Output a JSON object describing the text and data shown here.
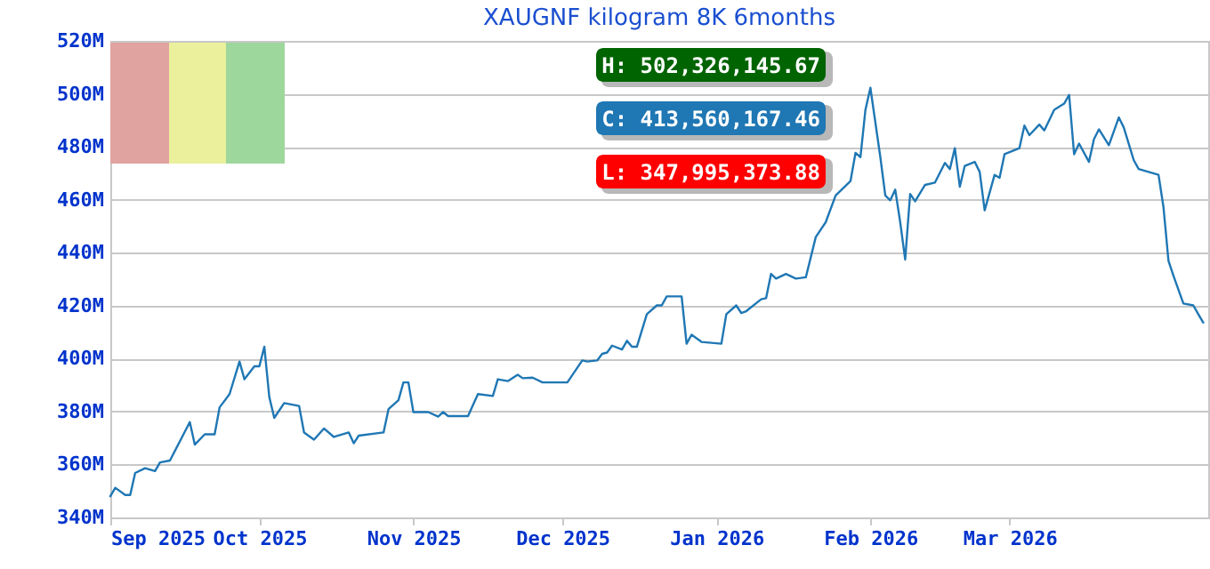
{
  "chart_data": {
    "type": "line",
    "title": "XAUGNF kilogram 8K 6months",
    "x": [
      "2025-09-01",
      "2025-09-02",
      "2025-09-04",
      "2025-09-05",
      "2025-09-06",
      "2025-09-08",
      "2025-09-10",
      "2025-09-11",
      "2025-09-13",
      "2025-09-17",
      "2025-09-18",
      "2025-09-20",
      "2025-09-22",
      "2025-09-23",
      "2025-09-25",
      "2025-09-27",
      "2025-09-28",
      "2025-09-30",
      "2025-10-01",
      "2025-10-02",
      "2025-10-03",
      "2025-10-04",
      "2025-10-06",
      "2025-10-09",
      "2025-10-10",
      "2025-10-12",
      "2025-10-14",
      "2025-10-16",
      "2025-10-19",
      "2025-10-20",
      "2025-10-21",
      "2025-10-26",
      "2025-10-27",
      "2025-10-29",
      "2025-10-30",
      "2025-10-31",
      "2025-11-01",
      "2025-11-04",
      "2025-11-06",
      "2025-11-07",
      "2025-11-08",
      "2025-11-11",
      "2025-11-12",
      "2025-11-14",
      "2025-11-17",
      "2025-11-18",
      "2025-11-20",
      "2025-11-22",
      "2025-11-23",
      "2025-11-25",
      "2025-11-27",
      "2025-12-02",
      "2025-12-05",
      "2025-12-06",
      "2025-12-08",
      "2025-12-09",
      "2025-12-10",
      "2025-12-11",
      "2025-12-13",
      "2025-12-14",
      "2025-12-15",
      "2025-12-16",
      "2025-12-18",
      "2025-12-20",
      "2025-12-21",
      "2025-12-22",
      "2025-12-25",
      "2025-12-26",
      "2025-12-27",
      "2025-12-29",
      "2026-01-02",
      "2026-01-03",
      "2026-01-05",
      "2026-01-06",
      "2026-01-07",
      "2026-01-10",
      "2026-01-11",
      "2026-01-12",
      "2026-01-13",
      "2026-01-15",
      "2026-01-17",
      "2026-01-19",
      "2026-01-21",
      "2026-01-23",
      "2026-01-25",
      "2026-01-28",
      "2026-01-29",
      "2026-01-30",
      "2026-01-31",
      "2026-02-01",
      "2026-02-03",
      "2026-02-04",
      "2026-02-05",
      "2026-02-06",
      "2026-02-07",
      "2026-02-08",
      "2026-02-09",
      "2026-02-10",
      "2026-02-12",
      "2026-02-14",
      "2026-02-16",
      "2026-02-17",
      "2026-02-18",
      "2026-02-19",
      "2026-02-20",
      "2026-02-22",
      "2026-02-23",
      "2026-02-24",
      "2026-02-26",
      "2026-02-27",
      "2026-02-28",
      "2026-03-03",
      "2026-03-04",
      "2026-03-05",
      "2026-03-07",
      "2026-03-08",
      "2026-03-10",
      "2026-03-12",
      "2026-03-13",
      "2026-03-14",
      "2026-03-15",
      "2026-03-17",
      "2026-03-18",
      "2026-03-19",
      "2026-03-21",
      "2026-03-23",
      "2026-03-24",
      "2026-03-26",
      "2026-03-27",
      "2026-03-29",
      "2026-03-31",
      "2026-04-01",
      "2026-04-02",
      "2026-04-03",
      "2026-04-05",
      "2026-04-07",
      "2026-04-08",
      "2026-04-09"
    ],
    "series": [
      {
        "color": "#1f77b4",
        "values": [
          348,
          351.2,
          348.5,
          348.5,
          356.8,
          358.6,
          357.5,
          360.8,
          361.5,
          376,
          367.5,
          371.4,
          371.4,
          381.6,
          386.6,
          398.9,
          392.2,
          397.1,
          397.1,
          404.5,
          385.5,
          377.6,
          383.2,
          382.1,
          372.1,
          369.4,
          373.6,
          370.4,
          372.1,
          368,
          370.9,
          372.1,
          380.9,
          384.3,
          391,
          391,
          379.8,
          379.8,
          378.1,
          379.8,
          378.3,
          378.3,
          378.3,
          386.6,
          385.9,
          392.2,
          391.5,
          393.9,
          392.6,
          392.8,
          391,
          391,
          399.3,
          398.9,
          399.3,
          401.8,
          402.3,
          404.9,
          403.4,
          406.7,
          404.5,
          404.5,
          416.8,
          420.1,
          420.1,
          423.5,
          423.5,
          405.6,
          409,
          406.3,
          405.6,
          416.8,
          420.1,
          417.2,
          417.9,
          422.4,
          422.8,
          432,
          430.2,
          432,
          430.2,
          430.7,
          445.9,
          451.5,
          461.6,
          467.1,
          477.7,
          476.1,
          494,
          502.3,
          476.1,
          461.6,
          459.8,
          463.8,
          451.5,
          437.4,
          462.2,
          459.4,
          465.6,
          466.5,
          473.9,
          471.6,
          479.5,
          464.9,
          472.8,
          474.3,
          470.5,
          456,
          469.4,
          468.3,
          477.2,
          479.5,
          488,
          484.4,
          488.4,
          486.2,
          494,
          496.3,
          499.6,
          477.2,
          481.2,
          474.3,
          482.9,
          486.6,
          480.6,
          491.1,
          487.3,
          475,
          471.6,
          470.5,
          469.4,
          457.1,
          436.9,
          431.3,
          420.8,
          420.1,
          416.8,
          413.6
        ]
      }
    ],
    "xlim": [
      "2025-09-01",
      "2026-04-10"
    ],
    "xticks": [
      {
        "value": "2025-09-01",
        "label": "Sep 2025"
      },
      {
        "value": "2025-10-01",
        "label": "Oct 2025"
      },
      {
        "value": "2025-11-01",
        "label": "Nov 2025"
      },
      {
        "value": "2025-12-01",
        "label": "Dec 2025"
      },
      {
        "value": "2026-01-01",
        "label": "Jan 2026"
      },
      {
        "value": "2026-02-01",
        "label": "Feb 2026"
      },
      {
        "value": "2026-03-01",
        "label": "Mar 2026"
      }
    ],
    "ylim": [
      340,
      520
    ],
    "yticks": [
      {
        "value": 340,
        "label": "340M"
      },
      {
        "value": 360,
        "label": "360M"
      },
      {
        "value": 380,
        "label": "380M"
      },
      {
        "value": 400,
        "label": "400M"
      },
      {
        "value": 420,
        "label": "420M"
      },
      {
        "value": 440,
        "label": "440M"
      },
      {
        "value": 460,
        "label": "460M"
      },
      {
        "value": 480,
        "label": "480M"
      },
      {
        "value": 500,
        "label": "500M"
      },
      {
        "value": 520,
        "label": "520M"
      }
    ],
    "grid": "y",
    "annotations": [
      "H: 502,326,145.67",
      "C: 413,560,167.46",
      "L: 347,995,373.88"
    ]
  }
}
